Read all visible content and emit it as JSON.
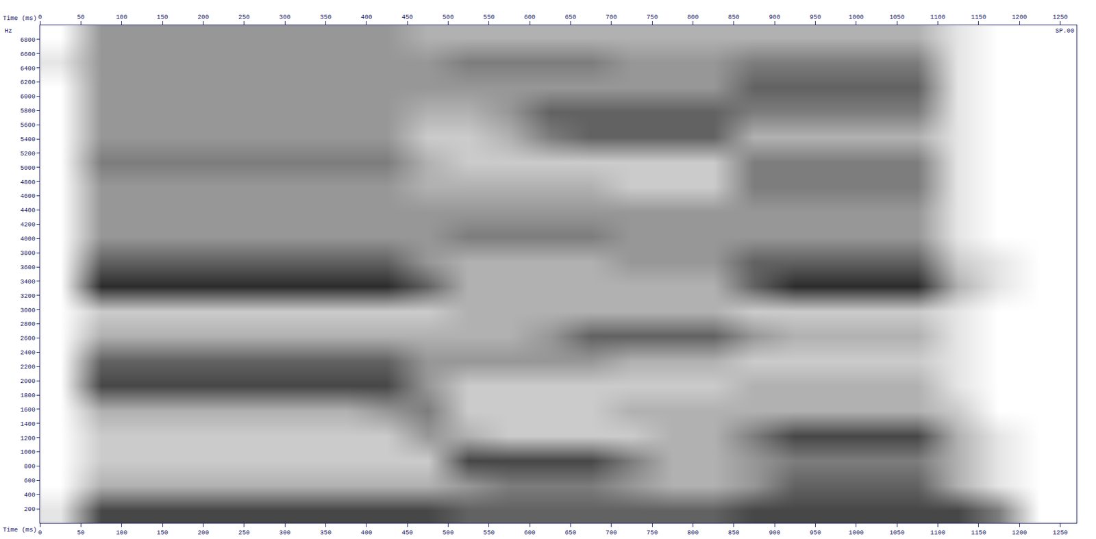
{
  "chart_data": {
    "type": "heatmap",
    "x_label": "Time (ms)",
    "y_label": "Hz",
    "annotations": [
      "SP.00"
    ],
    "x": [
      25,
      75,
      125,
      175,
      225,
      275,
      325,
      375,
      425,
      475,
      525,
      575,
      625,
      675,
      725,
      775,
      825,
      875,
      925,
      975,
      1025,
      1075,
      1125,
      1175,
      1225
    ],
    "y": [
      175,
      525,
      875,
      1225,
      1575,
      1925,
      2275,
      2625,
      2975,
      3325,
      3675,
      4025,
      4375,
      4725,
      5075,
      5425,
      5775,
      6125,
      6475,
      6825
    ],
    "z": [
      [
        1,
        7,
        7,
        7,
        7,
        7,
        7,
        7,
        7,
        7,
        6,
        6,
        6,
        6,
        6,
        6,
        6,
        7,
        7,
        7,
        7,
        7,
        7,
        5,
        0
      ],
      [
        0,
        3,
        3,
        3,
        3,
        3,
        3,
        3,
        3,
        3,
        4,
        5,
        5,
        5,
        4,
        3,
        3,
        4,
        6,
        6,
        6,
        6,
        3,
        1,
        0
      ],
      [
        0,
        2,
        2,
        2,
        2,
        2,
        2,
        2,
        2,
        2,
        7,
        7,
        7,
        7,
        5,
        3,
        3,
        4,
        5,
        5,
        5,
        5,
        3,
        1,
        0
      ],
      [
        0,
        2,
        2,
        2,
        2,
        2,
        2,
        2,
        2,
        4,
        3,
        2,
        2,
        2,
        2,
        3,
        3,
        5,
        7,
        7,
        7,
        7,
        3,
        1,
        0
      ],
      [
        0,
        3,
        3,
        3,
        3,
        3,
        3,
        3,
        4,
        5,
        2,
        2,
        2,
        2,
        3,
        3,
        3,
        3,
        3,
        3,
        3,
        3,
        2,
        0,
        0
      ],
      [
        0,
        7,
        7,
        7,
        7,
        7,
        7,
        7,
        7,
        4,
        2,
        2,
        2,
        2,
        2,
        2,
        2,
        3,
        3,
        3,
        3,
        3,
        1,
        0,
        0
      ],
      [
        0,
        6,
        6,
        6,
        6,
        6,
        6,
        6,
        6,
        4,
        4,
        4,
        4,
        4,
        3,
        3,
        3,
        2,
        2,
        2,
        2,
        2,
        1,
        0,
        0
      ],
      [
        0,
        3,
        3,
        3,
        3,
        3,
        3,
        3,
        3,
        3,
        3,
        3,
        4,
        6,
        6,
        6,
        6,
        4,
        3,
        3,
        3,
        3,
        1,
        0,
        0
      ],
      [
        0,
        2,
        2,
        2,
        2,
        2,
        2,
        2,
        2,
        2,
        3,
        3,
        3,
        3,
        3,
        3,
        3,
        2,
        2,
        2,
        2,
        2,
        1,
        0,
        0
      ],
      [
        0,
        8,
        8,
        8,
        8,
        8,
        8,
        8,
        8,
        6,
        3,
        3,
        3,
        3,
        3,
        3,
        3,
        6,
        8,
        8,
        8,
        8,
        3,
        1,
        0
      ],
      [
        0,
        6,
        6,
        6,
        6,
        6,
        6,
        6,
        6,
        4,
        3,
        3,
        3,
        3,
        4,
        4,
        4,
        6,
        6,
        6,
        6,
        6,
        2,
        1,
        0
      ],
      [
        0,
        4,
        4,
        4,
        4,
        4,
        4,
        4,
        4,
        4,
        5,
        5,
        5,
        5,
        4,
        4,
        4,
        4,
        4,
        4,
        4,
        4,
        1,
        0,
        0
      ],
      [
        0,
        4,
        4,
        4,
        4,
        4,
        4,
        4,
        4,
        4,
        4,
        4,
        4,
        4,
        4,
        4,
        4,
        4,
        4,
        4,
        4,
        4,
        1,
        0,
        0
      ],
      [
        0,
        4,
        4,
        4,
        4,
        4,
        4,
        4,
        4,
        3,
        3,
        3,
        3,
        3,
        2,
        2,
        2,
        5,
        5,
        5,
        5,
        5,
        1,
        0,
        0
      ],
      [
        0,
        5,
        5,
        5,
        5,
        5,
        5,
        5,
        5,
        3,
        2,
        2,
        2,
        2,
        2,
        2,
        2,
        5,
        5,
        5,
        5,
        5,
        1,
        0,
        0
      ],
      [
        0,
        4,
        4,
        4,
        4,
        4,
        4,
        4,
        4,
        2,
        2,
        3,
        5,
        6,
        6,
        6,
        6,
        3,
        3,
        3,
        3,
        3,
        1,
        0,
        0
      ],
      [
        0,
        4,
        4,
        4,
        4,
        4,
        4,
        4,
        4,
        3,
        3,
        4,
        6,
        6,
        6,
        6,
        6,
        5,
        5,
        5,
        5,
        5,
        1,
        0,
        0
      ],
      [
        0,
        4,
        4,
        4,
        4,
        4,
        4,
        4,
        4,
        4,
        4,
        4,
        4,
        4,
        4,
        4,
        4,
        6,
        6,
        6,
        6,
        6,
        1,
        0,
        0
      ],
      [
        1,
        4,
        4,
        4,
        4,
        4,
        4,
        4,
        4,
        4,
        5,
        5,
        5,
        5,
        4,
        4,
        4,
        5,
        5,
        5,
        5,
        5,
        1,
        0,
        0
      ],
      [
        0,
        4,
        4,
        4,
        4,
        4,
        4,
        4,
        4,
        3,
        3,
        3,
        3,
        3,
        3,
        3,
        3,
        3,
        3,
        3,
        3,
        3,
        1,
        0,
        0
      ]
    ],
    "zlim": [
      0,
      9
    ],
    "xlim": [
      0,
      1270
    ],
    "xticks": [
      0,
      50,
      100,
      150,
      200,
      250,
      300,
      350,
      400,
      450,
      500,
      550,
      600,
      650,
      700,
      750,
      800,
      850,
      900,
      950,
      1000,
      1050,
      1100,
      1150,
      1200,
      1250
    ],
    "ylim": [
      0,
      7000
    ],
    "yticks": [
      200,
      400,
      600,
      800,
      1000,
      1200,
      1400,
      1600,
      1800,
      2000,
      2200,
      2400,
      2600,
      2800,
      3000,
      3200,
      3400,
      3600,
      3800,
      4000,
      4200,
      4400,
      4600,
      4800,
      5000,
      5200,
      5400,
      5600,
      5800,
      6000,
      6200,
      6400,
      6600,
      6800
    ],
    "grid": false
  }
}
